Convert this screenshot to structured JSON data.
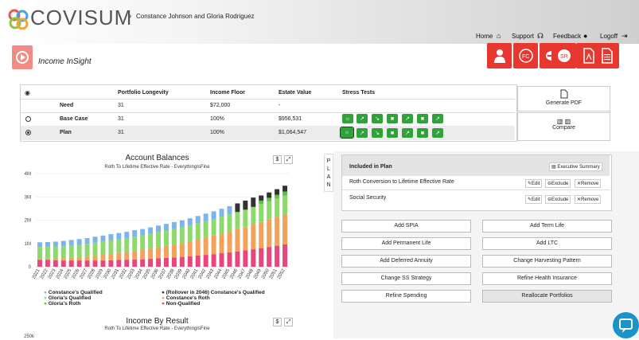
{
  "header": {
    "brand": "COVISUM",
    "clients": "Constance Johnson and Gloria Rodriguez",
    "nav": [
      {
        "label": "Home",
        "icon": "home-icon"
      },
      {
        "label": "Support",
        "icon": "headset-icon"
      },
      {
        "label": "Feedback",
        "icon": "comment-icon"
      },
      {
        "label": "Logoff",
        "icon": "logout-icon"
      }
    ]
  },
  "app": {
    "title": "Income InSight",
    "toolbar_icons": [
      "person-icon",
      "fc-badge-icon",
      "road-icon",
      "sr-badge-icon",
      "pdf-icon",
      "document-icon"
    ]
  },
  "summary": {
    "columns": [
      "Portfolio Longevity",
      "Income Floor",
      "Estate Value",
      "Stress Tests"
    ],
    "rows": [
      {
        "name": "Need",
        "longevity": "31",
        "floor": "$72,000",
        "estate": "-"
      },
      {
        "name": "Base Case",
        "longevity": "31",
        "floor": "100%",
        "estate": "$956,531"
      },
      {
        "name": "Plan",
        "longevity": "31",
        "floor": "100%",
        "estate": "$1,064,547"
      }
    ],
    "generate_pdf": "Generate PDF",
    "compare": "Compare"
  },
  "chart1": {
    "title": "Account Balances",
    "subtitle": "Roth To Lifetime Effective Rate - EverythingIsFine",
    "dollar": "$",
    "yticks": [
      "4M",
      "3M",
      "2M",
      "1M",
      "0"
    ],
    "legend": [
      "Constance's Qualified",
      "(Rollover in 2046) Constance's Qualified",
      "Gloria's Qualified",
      "Constance's Roth",
      "Gloria's Roth",
      "Non-Qualified"
    ]
  },
  "chart2": {
    "title": "Income By Result",
    "subtitle": "Roth To Lifetime Effective Rate - EverythingIsFine",
    "dollar": "$",
    "ytop": "250k"
  },
  "chart_data": {
    "type": "bar",
    "stacked": true,
    "categories": [
      "2021",
      "2022",
      "2023",
      "2024",
      "2025",
      "2026",
      "2027",
      "2028",
      "2029",
      "2030",
      "2031",
      "2032",
      "2033",
      "2034",
      "2035",
      "2036",
      "2037",
      "2038",
      "2039",
      "2040",
      "2041",
      "2042",
      "2043",
      "2044",
      "2045",
      "2046",
      "2047",
      "2048",
      "2049",
      "2050",
      "2051",
      "2052"
    ],
    "ylim": [
      0,
      4000000
    ],
    "series": [
      {
        "name": "Non-Qualified",
        "color": "#e8467c",
        "values": [
          300000,
          290000,
          280000,
          270000,
          270000,
          270000,
          270000,
          270000,
          270000,
          280000,
          290000,
          300000,
          310000,
          320000,
          340000,
          360000,
          380000,
          400000,
          420000,
          450000,
          480000,
          510000,
          540000,
          580000,
          620000,
          660000,
          700000,
          750000,
          800000,
          850000,
          900000,
          960000
        ]
      },
      {
        "name": "Constance's Roth",
        "color": "#f2a25a",
        "values": [
          50000,
          60000,
          80000,
          100000,
          120000,
          140000,
          170000,
          200000,
          240000,
          270000,
          300000,
          330000,
          370000,
          400000,
          440000,
          480000,
          520000,
          560000,
          600000,
          650000,
          700000,
          750000,
          800000,
          850000,
          900000,
          950000,
          1000000,
          1060000,
          1120000,
          1180000,
          1240000,
          1300000
        ]
      },
      {
        "name": "Gloria's Qualified",
        "color": "#8ed96b",
        "values": [
          500000,
          500000,
          500000,
          510000,
          520000,
          530000,
          540000,
          560000,
          570000,
          580000,
          590000,
          600000,
          610000,
          620000,
          630000,
          640000,
          650000,
          660000,
          670000,
          680000,
          690000,
          700000,
          710000,
          720000,
          730000,
          740000,
          750000,
          760000,
          770000,
          780000,
          790000,
          800000
        ]
      },
      {
        "name": "Gloria's Roth",
        "color": "#5fbf4a",
        "values": [
          0,
          0,
          0,
          0,
          0,
          0,
          0,
          0,
          0,
          0,
          0,
          0,
          0,
          0,
          0,
          0,
          0,
          0,
          0,
          0,
          0,
          0,
          0,
          0,
          0,
          0,
          0,
          0,
          150000,
          150000,
          160000,
          170000
        ]
      },
      {
        "name": "Constance's Qualified",
        "color": "#7cb5ec",
        "values": [
          200000,
          210000,
          220000,
          230000,
          240000,
          250000,
          250000,
          260000,
          260000,
          270000,
          270000,
          270000,
          280000,
          280000,
          280000,
          290000,
          290000,
          300000,
          300000,
          300000,
          310000,
          320000,
          330000,
          340000,
          350000,
          0,
          0,
          0,
          0,
          0,
          0,
          0
        ]
      },
      {
        "name": "(Rollover in 2046) Constance's Qualified",
        "color": "#333333",
        "values": [
          0,
          0,
          0,
          0,
          0,
          0,
          0,
          0,
          0,
          0,
          0,
          0,
          0,
          0,
          0,
          0,
          0,
          0,
          0,
          0,
          0,
          0,
          0,
          0,
          0,
          370000,
          390000,
          400000,
          220000,
          230000,
          240000,
          250000
        ]
      }
    ]
  },
  "plan_panel": {
    "tab_label": [
      "P",
      "L",
      "A",
      "N"
    ],
    "included_title": "Included in Plan",
    "exec_summary": "Executive Summary",
    "items": [
      {
        "label": "Roth Conversion to Lifetime Effective Rate",
        "edit": "Edit",
        "exclude": "Exclude",
        "remove": "Remove"
      },
      {
        "label": "Social Security",
        "edit": "Edit",
        "exclude": "Exclude",
        "remove": "Remove"
      }
    ],
    "actions": [
      [
        "Add SPIA",
        "Add Term Life"
      ],
      [
        "Add Permanent Life",
        "Add LTC"
      ],
      [
        "Add Deferred Annuity",
        "Change Harvesting Pattern"
      ],
      [
        "Change SS Strategy",
        "Refine Health Insurance"
      ],
      [
        "Refine Spending",
        "Reallocate Portfolios"
      ]
    ]
  }
}
